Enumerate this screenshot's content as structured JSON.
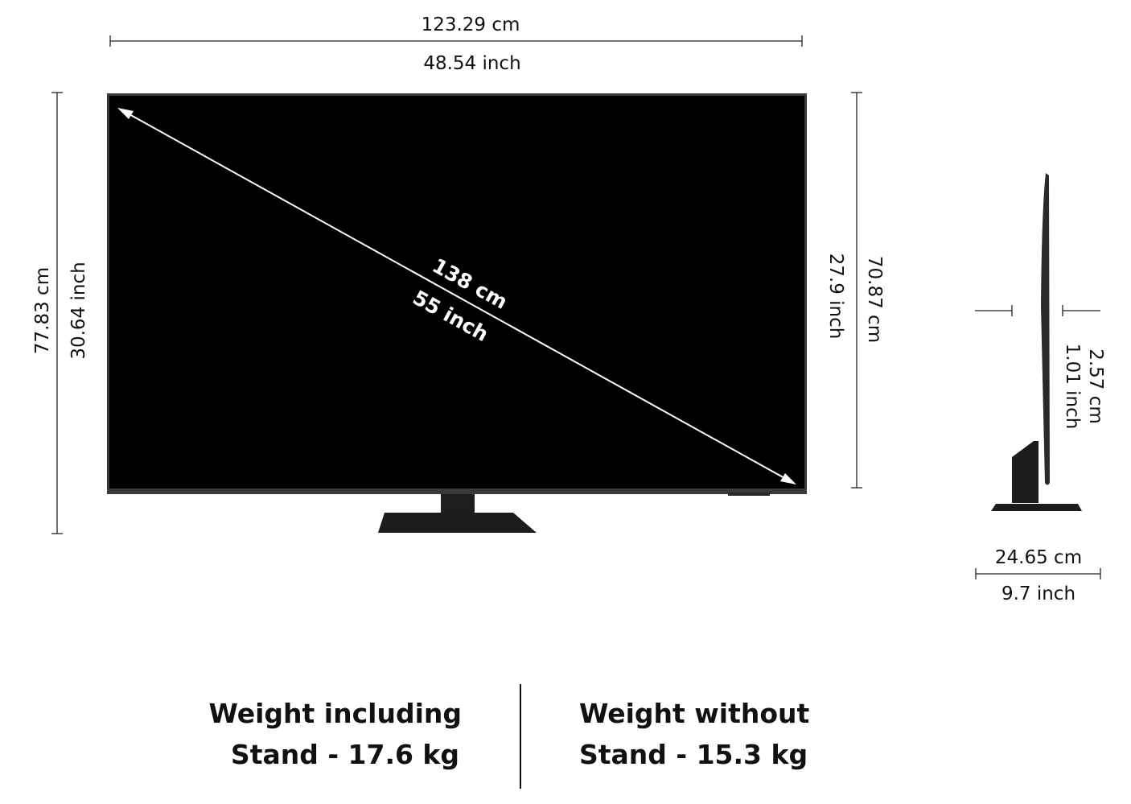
{
  "front": {
    "width_cm": "123.29 cm",
    "width_inch": "48.54 inch",
    "diagonal_cm": "138 cm",
    "diagonal_inch": "55 inch",
    "height_with_stand_cm": "77.83  cm",
    "height_with_stand_inch": "30.64  inch",
    "height_panel_inch": "27.9 inch",
    "height_panel_cm": "70.87 cm"
  },
  "side": {
    "depth_cm": "2.57 cm",
    "depth_inch": "1.01 inch",
    "stand_depth_cm": "24.65 cm",
    "stand_depth_inch": "9.7 inch"
  },
  "weights": {
    "with_stand_line1": "Weight including",
    "with_stand_line2": "Stand - 17.6 kg",
    "without_stand_line1": "Weight without",
    "without_stand_line2": "Stand - 15.3 kg"
  },
  "colors": {
    "screen": "#000000",
    "bezel": "#3a3a3a",
    "stand": "#1c1c1c"
  }
}
